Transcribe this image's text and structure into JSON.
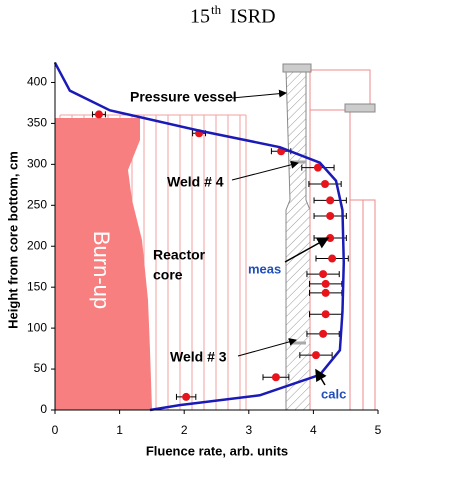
{
  "header": {
    "number": "15",
    "sup": "th",
    "rest": "ISRD"
  },
  "chart_data": {
    "type": "scatter",
    "xlabel": "Fluence rate, arb. units",
    "ylabel": "Height from core bottom, cm",
    "xlim": [
      0,
      5
    ],
    "xticks": [
      0,
      1,
      2,
      3,
      4,
      5
    ],
    "ylim": [
      0,
      425
    ],
    "yticks": [
      0,
      50,
      100,
      150,
      200,
      250,
      300,
      350,
      400
    ],
    "series": [
      {
        "name": "meas",
        "type": "scatter",
        "color": "#e8141c",
        "x": [
          0.68,
          2.23,
          3.5,
          4.07,
          4.18,
          4.26,
          4.26,
          4.26,
          4.29,
          4.15,
          4.19,
          4.19,
          4.19,
          4.15,
          4.04,
          3.42,
          2.03
        ],
        "values": [
          361,
          338,
          316,
          296,
          276,
          256,
          237,
          210,
          185,
          166,
          154,
          143,
          117,
          93,
          67,
          40,
          16
        ],
        "errors": [
          0.1,
          0.1,
          0.15,
          0.25,
          0.25,
          0.25,
          0.25,
          0.25,
          0.25,
          0.25,
          0.25,
          0.25,
          0.25,
          0.25,
          0.25,
          0.2,
          0.15
        ]
      },
      {
        "name": "calc",
        "type": "line",
        "color": "#1a1ab8",
        "x": [
          0,
          0.23,
          0.85,
          2.24,
          3.48,
          4.1,
          4.35,
          4.45,
          4.47,
          4.45,
          4.41,
          4.1,
          3.17,
          1.93,
          1.47
        ],
        "values": [
          424,
          390,
          366,
          341,
          321,
          302,
          280,
          244,
          180,
          120,
          73,
          43,
          18,
          6,
          0
        ]
      }
    ],
    "annotations": [
      "Pressure vessel",
      "Weld # 4",
      "Reactor",
      "core",
      "Burn-up",
      "Weld # 3"
    ]
  }
}
